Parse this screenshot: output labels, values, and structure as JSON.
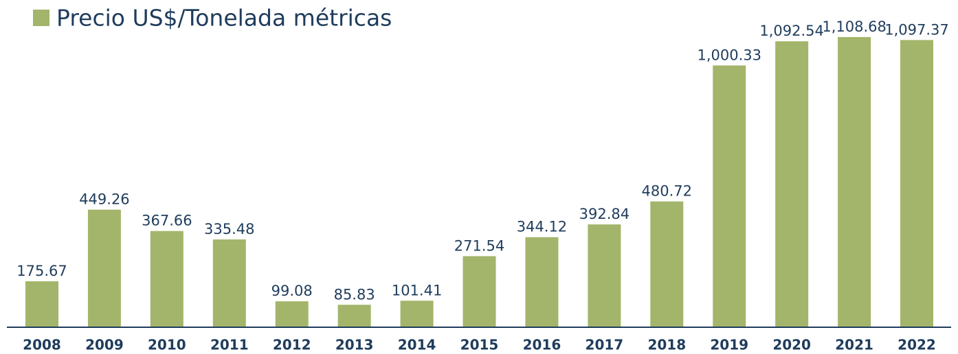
{
  "chart_data": {
    "type": "bar",
    "categories": [
      "2008",
      "2009",
      "2010",
      "2011",
      "2012",
      "2013",
      "2014",
      "2015",
      "2016",
      "2017",
      "2018",
      "2019",
      "2020",
      "2021",
      "2022"
    ],
    "series": [
      {
        "name": "Precio US$/Tonelada métricas",
        "color": "#a3b56a",
        "values": [
          175.67,
          449.26,
          367.66,
          335.48,
          99.08,
          85.83,
          101.41,
          271.54,
          344.12,
          392.84,
          480.72,
          1000.33,
          1092.54,
          1108.68,
          1097.37
        ],
        "value_labels": [
          "175.67",
          "449.26",
          "367.66",
          "335.48",
          "99.08",
          "85.83",
          "101.41",
          "271.54",
          "344.12",
          "392.84",
          "480.72",
          "1,000.33",
          "1,092.54",
          "1,108.68",
          "1,097.37"
        ]
      }
    ],
    "legend": "top-left"
  }
}
